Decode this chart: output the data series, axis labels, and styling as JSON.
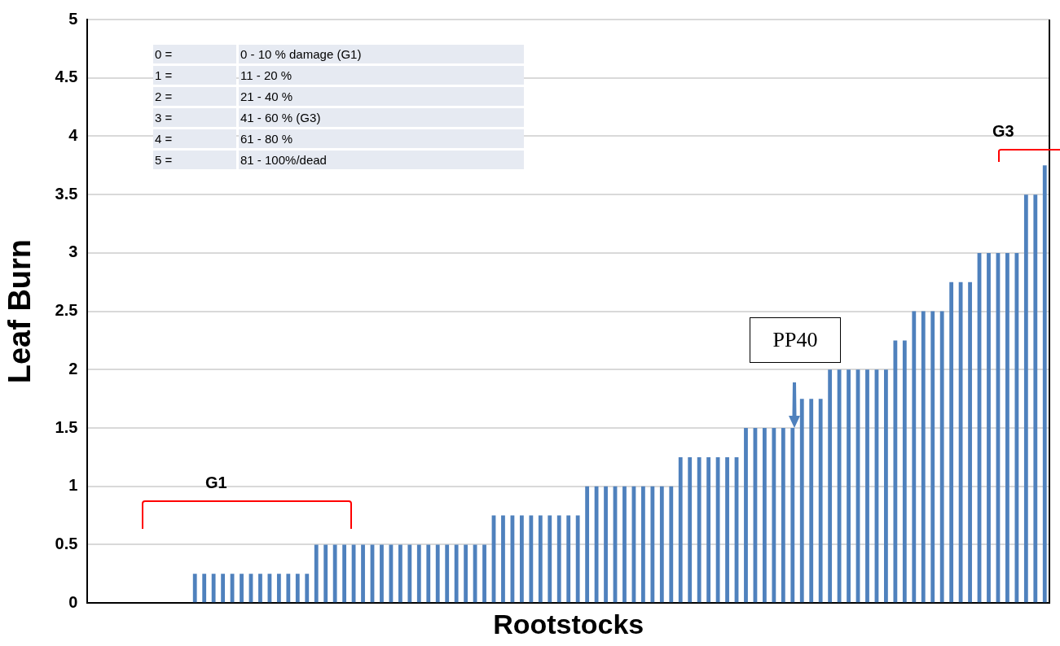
{
  "chart_data": {
    "type": "bar",
    "xlabel": "Rootstocks",
    "ylabel": "Leaf Burn",
    "categories": [
      null,
      null,
      null,
      null,
      null,
      null,
      null,
      null,
      null,
      null,
      null,
      null,
      null,
      null,
      null,
      null,
      null,
      null,
      null,
      null,
      null,
      null,
      null,
      null,
      null,
      null,
      null,
      null,
      null,
      null,
      null,
      null,
      null,
      null,
      null,
      null,
      null,
      null,
      null,
      null,
      null,
      null,
      null,
      null,
      null,
      null,
      null,
      null,
      null,
      null,
      null,
      null,
      null,
      null,
      null,
      null,
      null,
      null,
      null,
      null,
      null,
      null,
      null,
      null,
      null,
      null,
      null,
      null,
      null,
      null,
      null,
      null,
      null,
      null,
      null,
      null,
      null,
      null,
      null,
      null,
      null,
      null,
      null,
      null,
      null,
      null,
      null,
      null,
      null,
      null,
      null,
      null,
      null,
      null,
      null,
      null,
      null,
      null,
      null,
      null,
      null,
      null,
      null
    ],
    "values": [
      0,
      0,
      0,
      0,
      0,
      0,
      0,
      0,
      0,
      0,
      0,
      0.25,
      0.25,
      0.25,
      0.25,
      0.25,
      0.25,
      0.25,
      0.25,
      0.25,
      0.25,
      0.25,
      0.25,
      0.25,
      0.5,
      0.5,
      0.5,
      0.5,
      0.5,
      0.5,
      0.5,
      0.5,
      0.5,
      0.5,
      0.5,
      0.5,
      0.5,
      0.5,
      0.5,
      0.5,
      0.5,
      0.5,
      0.5,
      0.75,
      0.75,
      0.75,
      0.75,
      0.75,
      0.75,
      0.75,
      0.75,
      0.75,
      0.75,
      1,
      1,
      1,
      1,
      1,
      1,
      1,
      1,
      1,
      1,
      1.25,
      1.25,
      1.25,
      1.25,
      1.25,
      1.25,
      1.25,
      1.5,
      1.5,
      1.5,
      1.5,
      1.5,
      1.5,
      1.75,
      1.75,
      1.75,
      2,
      2,
      2,
      2,
      2,
      2,
      2,
      2.25,
      2.25,
      2.5,
      2.5,
      2.5,
      2.5,
      2.75,
      2.75,
      2.75,
      3,
      3,
      3,
      3,
      3,
      3.5,
      3.5,
      3.75
    ],
    "color": "#4f81bd",
    "ylim": [
      0,
      5
    ],
    "yticks": [
      0,
      0.5,
      1,
      1.5,
      2,
      2.5,
      3,
      3.5,
      4,
      4.5,
      5
    ],
    "grid": "y",
    "legend": false,
    "annotations": [
      "0 =",
      "0 - 10 % damage  (G1)",
      "1 =",
      "11 - 20 %",
      "2 =",
      "21 - 40 %",
      "3 =",
      "41 - 60 %  (G3)",
      "4 =",
      "61 - 80 %",
      "5 =",
      "81 - 100%/dead",
      "G1",
      "G3",
      "PP40"
    ]
  }
}
